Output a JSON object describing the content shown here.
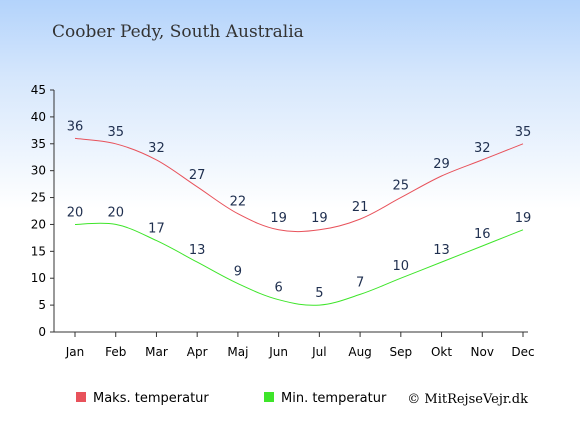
{
  "chart_data": {
    "type": "line",
    "title": "Coober Pedy, South Australia",
    "categories": [
      "Jan",
      "Feb",
      "Mar",
      "Apr",
      "Maj",
      "Jun",
      "Jul",
      "Aug",
      "Sep",
      "Okt",
      "Nov",
      "Dec"
    ],
    "series": [
      {
        "name": "Maks. temperatur",
        "color": "#e8525b",
        "values": [
          36,
          35,
          32,
          27,
          22,
          19,
          19,
          21,
          25,
          29,
          32,
          35
        ]
      },
      {
        "name": "Min. temperatur",
        "color": "#3ee52a",
        "values": [
          20,
          20,
          17,
          13,
          9,
          6,
          5,
          7,
          10,
          13,
          16,
          19
        ]
      }
    ],
    "ylim": [
      0,
      45
    ],
    "yticks": [
      0,
      5,
      10,
      15,
      20,
      25,
      30,
      35,
      40,
      45
    ],
    "grid": false,
    "legend": "bottom",
    "credit": "© MitRejseVejr.dk"
  }
}
